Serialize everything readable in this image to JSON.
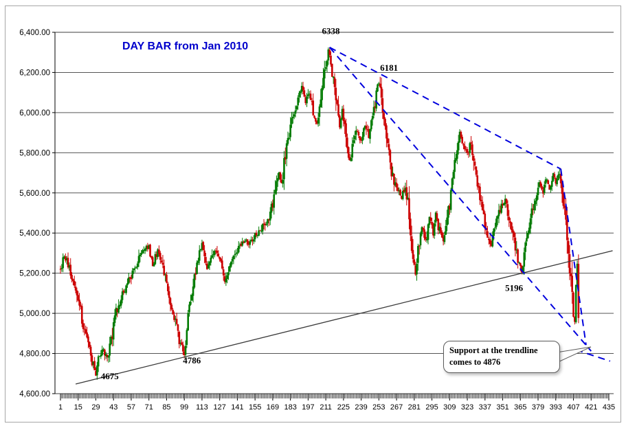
{
  "chart_data": {
    "type": "candlestick",
    "title": "DAY BAR from Jan 2010",
    "title_color": "#0000CC",
    "x_axis": {
      "min": 1,
      "max": 435,
      "tick_values": [
        1,
        15,
        29,
        43,
        57,
        71,
        85,
        99,
        113,
        127,
        141,
        155,
        169,
        183,
        197,
        211,
        225,
        239,
        253,
        267,
        281,
        295,
        309,
        323,
        337,
        351,
        365,
        379,
        393,
        407,
        421,
        435
      ]
    },
    "y_axis": {
      "min": 4600,
      "max": 6400,
      "step": 200,
      "ticks": [
        {
          "label": "6,400.00",
          "value": 6400
        },
        {
          "label": "6,200.00",
          "value": 6200
        },
        {
          "label": "6,000.00",
          "value": 6000
        },
        {
          "label": "5,800.00",
          "value": 5800
        },
        {
          "label": "5,600.00",
          "value": 5600
        },
        {
          "label": "5,400.00",
          "value": 5400
        },
        {
          "label": "5,200.00",
          "value": 5200
        },
        {
          "label": "5,000.00",
          "value": 5000
        },
        {
          "label": "4,800.00",
          "value": 4800
        },
        {
          "label": "4,600.00",
          "value": 4600
        }
      ]
    },
    "grid": "horizontal",
    "legend": "none",
    "colors": {
      "up": "#007A00",
      "down": "#CC0000",
      "gridline": "#3c3c3c",
      "axis_text": "#000000",
      "trend_solid": "#3a3a3a",
      "trend_dashed": "#0000DD"
    },
    "series": [
      {
        "name": "day-bars",
        "days": 411,
        "seed": 11,
        "anchors": [
          [
            1,
            5220
          ],
          [
            4,
            5290
          ],
          [
            8,
            5230
          ],
          [
            11,
            5160
          ],
          [
            15,
            5080
          ],
          [
            19,
            4940
          ],
          [
            23,
            4850
          ],
          [
            26,
            4760
          ],
          [
            29,
            4690
          ],
          [
            32,
            4790
          ],
          [
            35,
            4830
          ],
          [
            38,
            4770
          ],
          [
            41,
            4870
          ],
          [
            45,
            5000
          ],
          [
            50,
            5090
          ],
          [
            55,
            5160
          ],
          [
            60,
            5230
          ],
          [
            64,
            5290
          ],
          [
            68,
            5330
          ],
          [
            71,
            5320
          ],
          [
            74,
            5240
          ],
          [
            78,
            5310
          ],
          [
            82,
            5230
          ],
          [
            85,
            5150
          ],
          [
            88,
            5060
          ],
          [
            92,
            4960
          ],
          [
            95,
            4860
          ],
          [
            99,
            4800
          ],
          [
            102,
            4980
          ],
          [
            106,
            5150
          ],
          [
            110,
            5280
          ],
          [
            113,
            5340
          ],
          [
            117,
            5230
          ],
          [
            121,
            5290
          ],
          [
            125,
            5320
          ],
          [
            128,
            5250
          ],
          [
            131,
            5160
          ],
          [
            134,
            5220
          ],
          [
            138,
            5280
          ],
          [
            142,
            5330
          ],
          [
            146,
            5360
          ],
          [
            150,
            5340
          ],
          [
            154,
            5380
          ],
          [
            158,
            5410
          ],
          [
            162,
            5440
          ],
          [
            166,
            5480
          ],
          [
            169,
            5550
          ],
          [
            172,
            5650
          ],
          [
            174,
            5690
          ],
          [
            176,
            5630
          ],
          [
            179,
            5800
          ],
          [
            182,
            5900
          ],
          [
            186,
            6000
          ],
          [
            189,
            6070
          ],
          [
            192,
            6140
          ],
          [
            195,
            6060
          ],
          [
            198,
            6110
          ],
          [
            201,
            5990
          ],
          [
            204,
            5950
          ],
          [
            207,
            6060
          ],
          [
            210,
            6190
          ],
          [
            213,
            6300
          ],
          [
            216,
            6210
          ],
          [
            219,
            6060
          ],
          [
            222,
            5930
          ],
          [
            224,
            6020
          ],
          [
            227,
            5900
          ],
          [
            230,
            5750
          ],
          [
            233,
            5860
          ],
          [
            236,
            5910
          ],
          [
            239,
            5850
          ],
          [
            242,
            5940
          ],
          [
            245,
            5880
          ],
          [
            248,
            5960
          ],
          [
            251,
            6090
          ],
          [
            253,
            6155
          ],
          [
            256,
            6010
          ],
          [
            259,
            5880
          ],
          [
            262,
            5740
          ],
          [
            265,
            5650
          ],
          [
            268,
            5610
          ],
          [
            271,
            5570
          ],
          [
            274,
            5640
          ],
          [
            277,
            5490
          ],
          [
            279,
            5340
          ],
          [
            282,
            5180
          ],
          [
            285,
            5360
          ],
          [
            287,
            5430
          ],
          [
            290,
            5350
          ],
          [
            293,
            5470
          ],
          [
            296,
            5400
          ],
          [
            298,
            5500
          ],
          [
            301,
            5410
          ],
          [
            304,
            5360
          ],
          [
            307,
            5470
          ],
          [
            309,
            5540
          ],
          [
            312,
            5710
          ],
          [
            315,
            5830
          ],
          [
            317,
            5890
          ],
          [
            320,
            5840
          ],
          [
            323,
            5790
          ],
          [
            326,
            5860
          ],
          [
            328,
            5740
          ],
          [
            331,
            5640
          ],
          [
            334,
            5530
          ],
          [
            336,
            5470
          ],
          [
            339,
            5400
          ],
          [
            342,
            5340
          ],
          [
            345,
            5430
          ],
          [
            347,
            5480
          ],
          [
            350,
            5530
          ],
          [
            353,
            5570
          ],
          [
            355,
            5500
          ],
          [
            358,
            5430
          ],
          [
            361,
            5330
          ],
          [
            364,
            5240
          ],
          [
            366,
            5200
          ],
          [
            369,
            5330
          ],
          [
            372,
            5430
          ],
          [
            374,
            5500
          ],
          [
            377,
            5570
          ],
          [
            380,
            5640
          ],
          [
            383,
            5600
          ],
          [
            385,
            5670
          ],
          [
            388,
            5620
          ],
          [
            391,
            5690
          ],
          [
            393,
            5650
          ],
          [
            396,
            5710
          ],
          [
            399,
            5570
          ],
          [
            401,
            5470
          ],
          [
            403,
            5330
          ],
          [
            405,
            5150
          ],
          [
            407,
            4990
          ],
          [
            408,
            4950
          ],
          [
            409,
            5150
          ],
          [
            410,
            5230
          ],
          [
            411,
            4990
          ]
        ]
      }
    ],
    "trendlines": [
      {
        "name": "support-trendline",
        "style": "solid",
        "points": [
          [
            13,
            4648
          ],
          [
            438,
            5312
          ]
        ]
      },
      {
        "name": "descending-trendline-upper",
        "style": "dashed",
        "points": [
          [
            214,
            6325
          ],
          [
            397,
            5719
          ]
        ]
      },
      {
        "name": "descending-trendline-upper-drop",
        "style": "dashed",
        "points": [
          [
            397,
            5719
          ],
          [
            417,
            4842
          ]
        ]
      },
      {
        "name": "descending-trendline-lower",
        "style": "dashed",
        "points": [
          [
            214,
            6325
          ],
          [
            421,
            4812
          ]
        ]
      },
      {
        "name": "support-extension",
        "style": "dashed",
        "points": [
          [
            409,
            4818
          ],
          [
            436,
            4762
          ]
        ]
      }
    ],
    "annotations": [
      {
        "text": "6338",
        "day": 215,
        "price": 6392
      },
      {
        "text": "6181",
        "day": 261,
        "price": 6208
      },
      {
        "text": "5196",
        "day": 360,
        "price": 5112
      },
      {
        "text": "4786",
        "day": 105,
        "price": 4750
      },
      {
        "text": "4675",
        "day": 40,
        "price": 4672
      }
    ],
    "callout": {
      "text": "Support at the trendline comes to 4876"
    }
  }
}
